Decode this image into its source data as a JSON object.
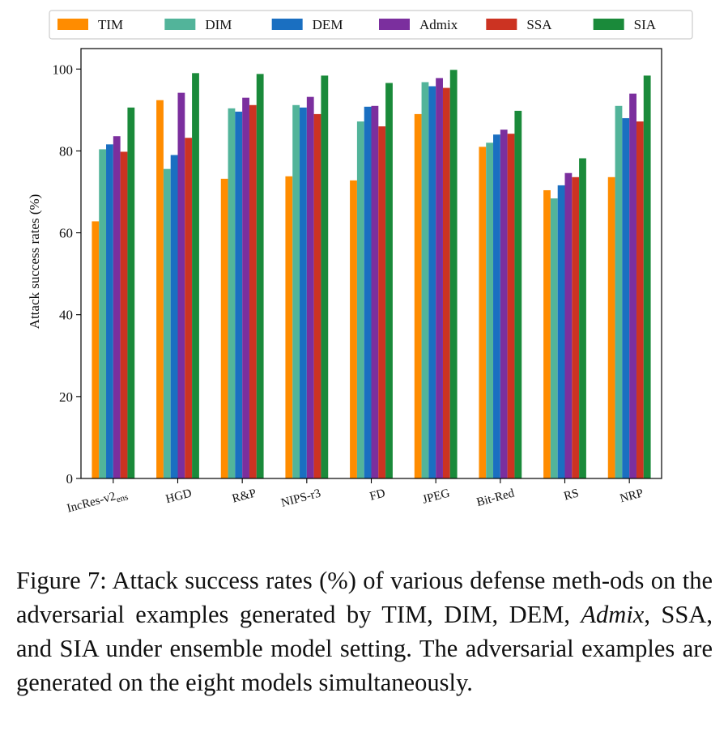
{
  "chart_data": {
    "type": "bar",
    "title": "",
    "xlabel": "",
    "ylabel": "Attack success rates (%)",
    "ylim": [
      0,
      105
    ],
    "yticks": [
      0,
      20,
      40,
      60,
      80,
      100
    ],
    "categories": [
      {
        "base": "IncRes-v2",
        "sub": "ens"
      },
      {
        "base": "HGD",
        "sub": ""
      },
      {
        "base": "R&P",
        "sub": ""
      },
      {
        "base": "NIPS-r3",
        "sub": ""
      },
      {
        "base": "FD",
        "sub": ""
      },
      {
        "base": "JPEG",
        "sub": ""
      },
      {
        "base": "Bit-Red",
        "sub": ""
      },
      {
        "base": "RS",
        "sub": ""
      },
      {
        "base": "NRP",
        "sub": ""
      }
    ],
    "series": [
      {
        "name": "TIM",
        "color": "#ff8c00",
        "values": [
          62.8,
          92.4,
          73.2,
          73.8,
          72.8,
          89.0,
          81.0,
          70.4,
          73.6
        ]
      },
      {
        "name": "DIM",
        "color": "#52b49a",
        "values": [
          80.4,
          75.6,
          90.4,
          91.2,
          87.2,
          96.8,
          82.0,
          68.4,
          91.0
        ]
      },
      {
        "name": "DEM",
        "color": "#1a6fc1",
        "values": [
          81.6,
          79.0,
          89.6,
          90.6,
          90.8,
          95.8,
          84.0,
          71.6,
          88.0
        ]
      },
      {
        "name": "Admix",
        "color": "#7b2f9e",
        "values": [
          83.6,
          94.2,
          93.0,
          93.2,
          91.0,
          97.8,
          85.2,
          74.6,
          94.0
        ]
      },
      {
        "name": "SSA",
        "color": "#cc3322",
        "values": [
          79.8,
          83.2,
          91.2,
          89.0,
          86.0,
          95.4,
          84.2,
          73.6,
          87.2
        ]
      },
      {
        "name": "SIA",
        "color": "#1a8a3a",
        "values": [
          90.6,
          99.0,
          98.8,
          98.4,
          96.6,
          99.8,
          89.8,
          78.2,
          98.4
        ]
      }
    ],
    "legend_position": "top"
  },
  "caption": {
    "label": "Figure 7:",
    "part1": " Attack success rates (%) of various defense meth-ods on the adversarial examples generated by TIM, DIM, DEM, ",
    "admix": "Admix",
    "part2": ", SSA, and SIA under ensemble model setting. The adversarial examples are generated on the eight models simultaneously."
  }
}
